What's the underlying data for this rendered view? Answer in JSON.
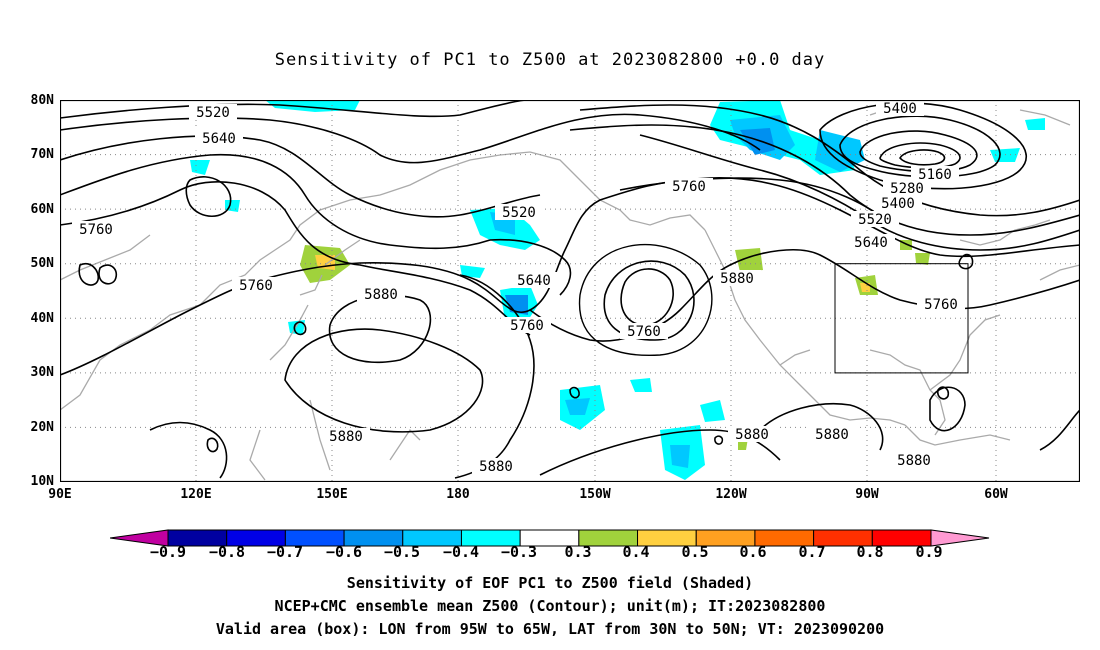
{
  "title": "Sensitivity of PC1 to Z500 at 2023082800 +0.0 day",
  "lat_labels": [
    "80N",
    "70N",
    "60N",
    "50N",
    "40N",
    "30N",
    "20N",
    "10N"
  ],
  "lon_labels": [
    "90E",
    "120E",
    "150E",
    "180",
    "150W",
    "120W",
    "90W",
    "60W"
  ],
  "contour_labels": {
    "c5520a": "5520",
    "c5640a": "5640",
    "c5760a": "5760",
    "c5520b": "5520",
    "c5760b": "5760",
    "c5880a": "5880",
    "c5640b": "5640",
    "c5760c": "5760",
    "c5760d": "5760",
    "c5880b": "5880",
    "c5400a": "5400",
    "c5160": "5160",
    "c5280": "5280",
    "c5400b": "5400",
    "c5520c": "5520",
    "c5640c": "5640",
    "c5760e": "5760",
    "c5760f": "5760",
    "c5880c": "5880",
    "c5880d": "5880",
    "c5880e": "5880",
    "c5880f": "5880",
    "c5880g": "5880"
  },
  "colorbar": {
    "labels": [
      "−0.9",
      "−0.8",
      "−0.7",
      "−0.6",
      "−0.5",
      "−0.4",
      "−0.3",
      "0.3",
      "0.4",
      "0.5",
      "0.6",
      "0.7",
      "0.8",
      "0.9"
    ],
    "colors": [
      "#0000a0",
      "#0000e6",
      "#0050ff",
      "#0090f0",
      "#00c8ff",
      "#00ffff",
      "#ffffff",
      "#a0d23c",
      "#ffd040",
      "#ffa020",
      "#ff6a00",
      "#ff3000",
      "#ff0000"
    ],
    "low_color": "#c000a0",
    "high_color": "#ff9ad2"
  },
  "footer": {
    "line1": "Sensitivity of EOF PC1 to Z500 field (Shaded)",
    "line2": "NCEP+CMC ensemble mean Z500 (Contour); unit(m); IT:2023082800",
    "line3": "Valid area (box): LON from 95W to 65W, LAT from 30N to 50N; VT: 2023090200"
  }
}
